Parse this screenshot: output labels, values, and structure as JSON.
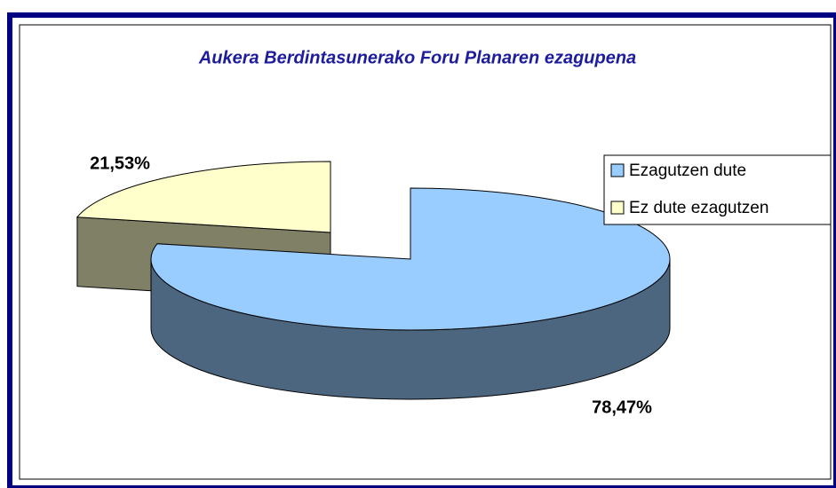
{
  "chart_data": {
    "type": "pie3d",
    "title": "Aukera Berdintasunerako Foru Planaren ezagupena",
    "categories": [
      "Ezagutzen dute",
      "Ez dute ezagutzen"
    ],
    "values": [
      78.47,
      21.53
    ],
    "value_labels": [
      "78,47%",
      "21,53%"
    ],
    "colors": [
      "#99ccff",
      "#ffffcc"
    ],
    "legend": "right"
  }
}
